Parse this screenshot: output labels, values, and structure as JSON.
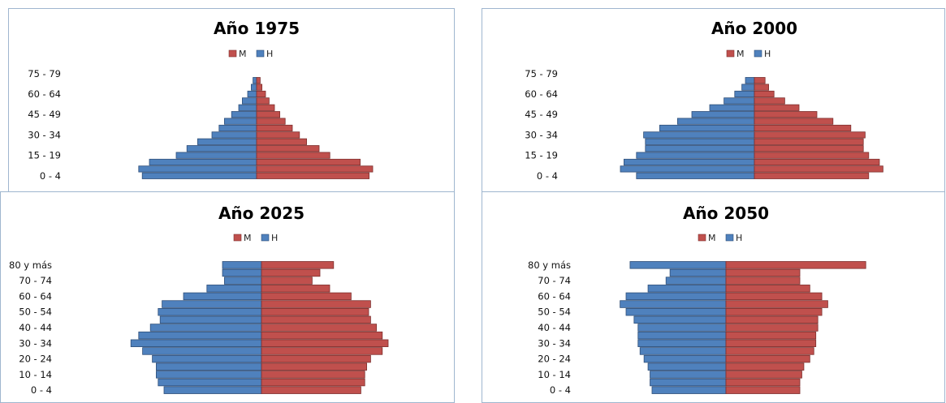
{
  "legend": {
    "m_label": "M",
    "h_label": "H"
  },
  "colors": {
    "m": "#c0504d",
    "h": "#4f81bd",
    "m_stroke": "#7d2f2d",
    "h_stroke": "#2e4e78"
  },
  "chart_data": [
    {
      "type": "bar",
      "title": "Año 1975",
      "legend_position": "top-center",
      "series": [
        {
          "name": "M",
          "values": [
            6.3,
            6.5,
            5.8,
            4.1,
            3.5,
            2.8,
            2.4,
            2.0,
            1.6,
            1.3,
            1.0,
            0.7,
            0.5,
            0.3,
            0.2
          ]
        },
        {
          "name": "H",
          "values": [
            6.4,
            6.6,
            6.0,
            4.5,
            3.9,
            3.3,
            2.5,
            2.1,
            1.8,
            1.4,
            1.0,
            0.8,
            0.5,
            0.3,
            0.2
          ]
        }
      ],
      "tick_labels": [
        "75 - 79",
        "60 - 64",
        "45 - 49",
        "30 - 34",
        "15 - 19",
        "0 - 4"
      ],
      "tick_rows": [
        15,
        12,
        9,
        6,
        3,
        0
      ]
    },
    {
      "type": "bar",
      "title": "Año 2000",
      "legend_position": "top-center",
      "series": [
        {
          "name": "M",
          "values": [
            6.4,
            7.2,
            7.0,
            6.4,
            6.1,
            6.1,
            6.2,
            5.4,
            4.4,
            3.5,
            2.5,
            1.7,
            1.1,
            0.8,
            0.6
          ]
        },
        {
          "name": "H",
          "values": [
            6.6,
            7.5,
            7.3,
            6.6,
            6.1,
            6.1,
            6.2,
            5.3,
            4.3,
            3.5,
            2.5,
            1.7,
            1.1,
            0.7,
            0.5
          ]
        }
      ],
      "tick_labels": [
        "75 - 79",
        "60 - 64",
        "45 - 49",
        "30 - 34",
        "15 - 19",
        "0 - 4"
      ],
      "tick_rows": [
        15,
        12,
        9,
        6,
        3,
        0
      ]
    },
    {
      "type": "bar",
      "title": "Año 2025",
      "legend_position": "top-center",
      "series": [
        {
          "name": "M",
          "values": [
            5.1,
            5.3,
            5.3,
            5.4,
            5.6,
            6.2,
            6.5,
            6.2,
            5.9,
            5.6,
            5.5,
            5.6,
            4.6,
            3.5,
            2.6,
            3.0,
            3.7
          ]
        },
        {
          "name": "H",
          "values": [
            5.0,
            5.3,
            5.4,
            5.4,
            5.6,
            6.1,
            6.7,
            6.3,
            5.7,
            5.2,
            5.3,
            5.1,
            4.0,
            2.8,
            1.9,
            2.0,
            2.0
          ]
        }
      ],
      "tick_labels": [
        "80 y más",
        "70 - 74",
        "60 - 64",
        "50 - 54",
        "40 - 44",
        "30 - 34",
        "20 - 24",
        "10 - 14",
        "0 - 4"
      ],
      "tick_rows": [
        16,
        14,
        12,
        10,
        8,
        6,
        4,
        2,
        0
      ]
    },
    {
      "type": "bar",
      "title": "Año 2050",
      "legend_position": "top-center",
      "series": [
        {
          "name": "M",
          "values": [
            3.7,
            3.7,
            3.8,
            3.9,
            4.2,
            4.4,
            4.5,
            4.5,
            4.6,
            4.6,
            4.8,
            5.1,
            4.8,
            4.2,
            3.7,
            3.7,
            7.0
          ]
        },
        {
          "name": "H",
          "values": [
            3.7,
            3.8,
            3.8,
            3.9,
            4.1,
            4.3,
            4.4,
            4.4,
            4.4,
            4.6,
            5.0,
            5.3,
            5.0,
            3.9,
            3.0,
            2.8,
            4.8
          ]
        }
      ],
      "tick_labels": [
        "80 y más",
        "70 - 74",
        "60 - 64",
        "50 - 54",
        "40 - 44",
        "30 - 34",
        "20 - 24",
        "10 - 14",
        "0 - 4"
      ],
      "tick_rows": [
        16,
        14,
        12,
        10,
        8,
        6,
        4,
        2,
        0
      ]
    }
  ]
}
